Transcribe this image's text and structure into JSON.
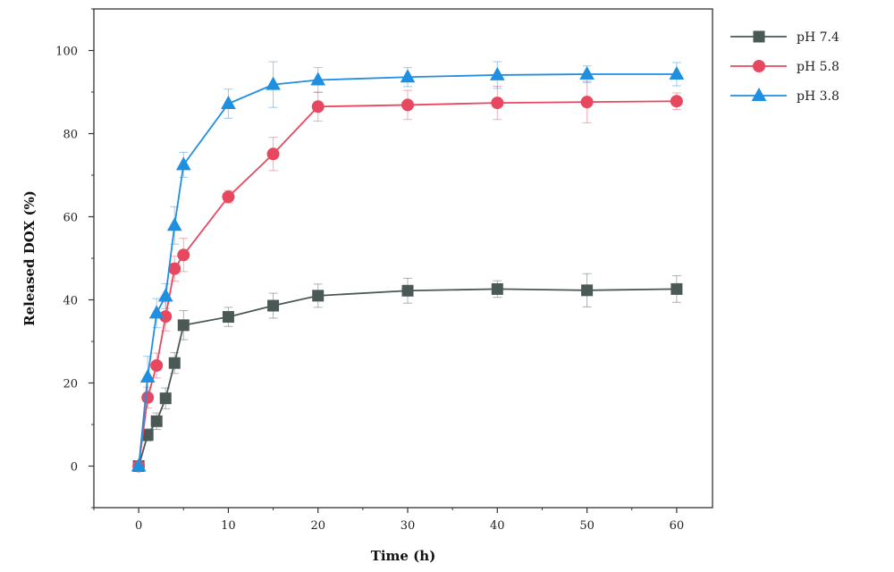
{
  "chart_data": {
    "type": "line",
    "xlabel": "Time (h)",
    "ylabel": "Released DOX (%)",
    "xlim": [
      -5,
      64
    ],
    "ylim": [
      -10,
      110
    ],
    "xticks": [
      0,
      10,
      20,
      30,
      40,
      50,
      60
    ],
    "yticks": [
      0,
      20,
      40,
      60,
      80,
      100
    ],
    "grid": false,
    "legend_position": "right",
    "x": [
      0,
      1,
      2,
      3,
      4,
      5,
      10,
      15,
      20,
      30,
      40,
      50,
      60
    ],
    "series": [
      {
        "name": "pH 7.4",
        "color": "#4a5856",
        "marker": "square",
        "values": [
          0,
          7.5,
          10.8,
          16.3,
          24.8,
          33.9,
          35.9,
          38.6,
          41.0,
          42.2,
          42.6,
          42.3,
          42.6
        ],
        "errors": [
          0.5,
          1.5,
          2.0,
          2.5,
          2.5,
          3.5,
          2.3,
          3.0,
          2.8,
          3.0,
          2.0,
          4.0,
          3.2
        ]
      },
      {
        "name": "pH 5.8",
        "color": "#e8485f",
        "marker": "circle",
        "values": [
          0,
          16.5,
          24.2,
          36.0,
          47.5,
          50.8,
          64.8,
          75.1,
          86.5,
          86.9,
          87.4,
          87.6,
          87.8
        ],
        "errors": [
          0.5,
          2.5,
          3.0,
          3.5,
          3.0,
          4.0,
          1.5,
          4.0,
          3.5,
          3.5,
          4.0,
          5.0,
          2.0
        ]
      },
      {
        "name": "pH 3.8",
        "color": "#1f8fe0",
        "marker": "triangle",
        "values": [
          0,
          21.4,
          36.8,
          40.9,
          57.9,
          72.5,
          87.2,
          91.8,
          92.9,
          93.6,
          94.1,
          94.3,
          94.3
        ],
        "errors": [
          0.5,
          5.0,
          3.5,
          3.0,
          4.5,
          3.0,
          3.5,
          5.5,
          3.0,
          2.3,
          3.2,
          2.0,
          2.8
        ]
      }
    ]
  }
}
